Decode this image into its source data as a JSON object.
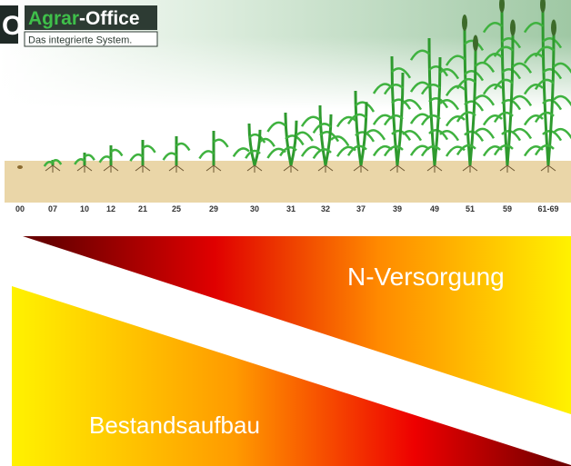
{
  "logo": {
    "mark": "O",
    "brand_main": "Agrar",
    "brand_suffix": "-Office",
    "tagline": "Das integrierte System."
  },
  "growth_stages": [
    "00",
    "07",
    "10",
    "12",
    "21",
    "25",
    "29",
    "30",
    "31",
    "32",
    "37",
    "39",
    "49",
    "51",
    "59",
    "61-69"
  ],
  "labels": {
    "upper": "N-Versorgung",
    "lower": "Bestandsaufbau"
  }
}
